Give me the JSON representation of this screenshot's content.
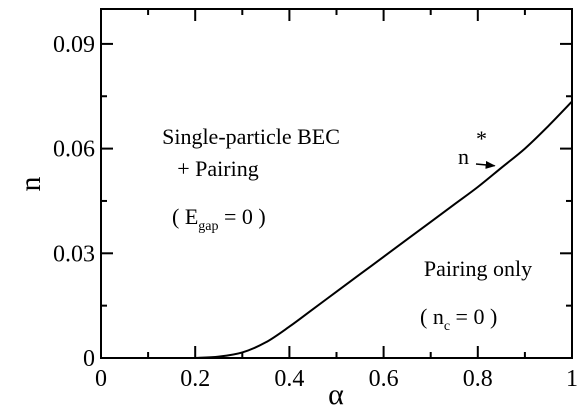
{
  "chart_data": {
    "type": "line",
    "xlabel": "α",
    "ylabel": "n",
    "xlim": [
      0,
      1
    ],
    "ylim": [
      0,
      0.1
    ],
    "grid": false,
    "x_ticks": [
      0,
      0.2,
      0.4,
      0.6,
      0.8,
      1
    ],
    "x_tick_labels": [
      "0",
      "0.2",
      "0.4",
      "0.6",
      "0.8",
      "1"
    ],
    "y_ticks": [
      0,
      0.03,
      0.06,
      0.09
    ],
    "y_tick_labels": [
      "0",
      "0.03",
      "0.06",
      "0.09"
    ],
    "series": [
      {
        "name": "n*",
        "x": [
          0.2,
          0.25,
          0.3,
          0.35,
          0.4,
          0.45,
          0.5,
          0.55,
          0.6,
          0.65,
          0.7,
          0.75,
          0.8,
          0.85,
          0.9,
          0.95,
          1.0
        ],
        "y": [
          0.0,
          0.0004,
          0.0016,
          0.0045,
          0.009,
          0.014,
          0.019,
          0.024,
          0.029,
          0.034,
          0.039,
          0.044,
          0.049,
          0.0545,
          0.06,
          0.0665,
          0.0735
        ]
      }
    ],
    "curve_label": {
      "base": "n",
      "sup": "*",
      "arrow_to": [
        0.84,
        0.0545
      ]
    },
    "region_labels": {
      "upper": {
        "line1": "Single-particle BEC",
        "line2": "+ Pairing",
        "line3_open": "( E",
        "line3_sub": "gap",
        "line3_close": " = 0 )"
      },
      "lower": {
        "line1": "Pairing only",
        "line2_open": "( n",
        "line2_sub": "c",
        "line2_close": " = 0 )"
      }
    }
  }
}
